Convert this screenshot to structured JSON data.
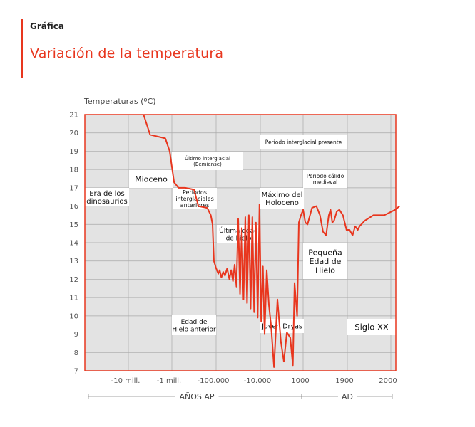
{
  "header": {
    "section_label": "Gráfica",
    "title": "Variación de la temperatura"
  },
  "colors": {
    "accent": "#e8361e",
    "grid": "#999999",
    "plot_bg": "#e3e3e3",
    "text": "#555555"
  },
  "chart_data": {
    "type": "line",
    "title": "Variación de la temperatura",
    "ylabel": "Temperaturas (ºC)",
    "ylim": [
      7,
      21
    ],
    "yticks": [
      7,
      8,
      9,
      10,
      11,
      12,
      13,
      14,
      15,
      16,
      17,
      18,
      19,
      20,
      21
    ],
    "xticks": [
      "-10 mill.",
      "-1 mill.",
      "-100.000",
      "-10.000",
      "1000",
      "1900",
      "2000"
    ],
    "x_groups": [
      {
        "label": "AÑOS AP"
      },
      {
        "label": "AD"
      }
    ],
    "grid": true,
    "series": [
      {
        "values": [
          [
            0.35,
            21.0
          ],
          [
            0.5,
            19.9
          ],
          [
            0.85,
            19.7
          ],
          [
            0.95,
            19.0
          ],
          [
            1.05,
            17.3
          ],
          [
            1.15,
            17.0
          ],
          [
            1.3,
            17.0
          ],
          [
            1.5,
            16.9
          ],
          [
            1.6,
            16.0
          ],
          [
            1.8,
            15.9
          ],
          [
            1.88,
            15.5
          ],
          [
            1.92,
            15.0
          ],
          [
            1.95,
            13.0
          ],
          [
            2.0,
            12.6
          ],
          [
            2.05,
            12.3
          ],
          [
            2.08,
            12.5
          ],
          [
            2.12,
            12.1
          ],
          [
            2.16,
            12.4
          ],
          [
            2.2,
            12.2
          ],
          [
            2.25,
            12.6
          ],
          [
            2.3,
            12.0
          ],
          [
            2.34,
            12.5
          ],
          [
            2.38,
            11.9
          ],
          [
            2.42,
            12.8
          ],
          [
            2.46,
            11.6
          ],
          [
            2.5,
            15.3
          ],
          [
            2.54,
            11.2
          ],
          [
            2.58,
            14.8
          ],
          [
            2.62,
            10.9
          ],
          [
            2.66,
            15.4
          ],
          [
            2.7,
            10.7
          ],
          [
            2.74,
            15.5
          ],
          [
            2.78,
            10.4
          ],
          [
            2.82,
            15.4
          ],
          [
            2.86,
            10.2
          ],
          [
            2.9,
            15.1
          ],
          [
            2.94,
            9.9
          ],
          [
            2.98,
            16.1
          ],
          [
            3.02,
            9.7
          ],
          [
            3.06,
            12.7
          ],
          [
            3.1,
            9.0
          ],
          [
            3.15,
            12.5
          ],
          [
            3.2,
            10.6
          ],
          [
            3.25,
            9.5
          ],
          [
            3.32,
            7.2
          ],
          [
            3.4,
            10.9
          ],
          [
            3.48,
            8.6
          ],
          [
            3.55,
            7.5
          ],
          [
            3.62,
            9.1
          ],
          [
            3.7,
            8.8
          ],
          [
            3.76,
            7.3
          ],
          [
            3.8,
            11.8
          ],
          [
            3.86,
            10.0
          ],
          [
            3.9,
            15.1
          ],
          [
            3.95,
            15.5
          ],
          [
            4.0,
            15.8
          ],
          [
            4.05,
            15.1
          ],
          [
            4.1,
            15.0
          ],
          [
            4.2,
            15.9
          ],
          [
            4.3,
            16.0
          ],
          [
            4.38,
            15.5
          ],
          [
            4.45,
            14.6
          ],
          [
            4.52,
            14.4
          ],
          [
            4.58,
            15.5
          ],
          [
            4.62,
            15.8
          ],
          [
            4.66,
            15.1
          ],
          [
            4.7,
            15.2
          ],
          [
            4.76,
            15.7
          ],
          [
            4.82,
            15.8
          ],
          [
            4.9,
            15.5
          ],
          [
            4.98,
            14.7
          ],
          [
            5.05,
            14.7
          ],
          [
            5.12,
            14.4
          ],
          [
            5.18,
            14.9
          ],
          [
            5.24,
            14.7
          ],
          [
            5.28,
            14.9
          ],
          [
            5.4,
            15.2
          ],
          [
            5.6,
            15.5
          ],
          [
            5.85,
            15.5
          ],
          [
            6.1,
            15.8
          ],
          [
            6.2,
            16.0
          ]
        ]
      }
    ],
    "annotations": [
      {
        "lines": [
          "Periodo interglacial presente"
        ]
      },
      {
        "lines": [
          "Último interglacial",
          "(Eemiense)"
        ]
      },
      {
        "lines": [
          "Periodo cálido",
          "medieval"
        ]
      },
      {
        "lines": [
          "Mioceno"
        ]
      },
      {
        "lines": [
          "Era de los",
          "dinosaurios"
        ]
      },
      {
        "lines": [
          "Periodos",
          "interglaciales",
          "anteriores"
        ]
      },
      {
        "lines": [
          "Máximo del",
          "Holoceno"
        ]
      },
      {
        "lines": [
          "Última edad",
          "de hielo"
        ]
      },
      {
        "lines": [
          "Pequeña",
          "Edad de",
          "Hielo"
        ]
      },
      {
        "lines": [
          "Edad de",
          "Hielo anterior"
        ]
      },
      {
        "lines": [
          "Joven Dryas"
        ]
      },
      {
        "lines": [
          "Siglo XX"
        ]
      }
    ]
  }
}
